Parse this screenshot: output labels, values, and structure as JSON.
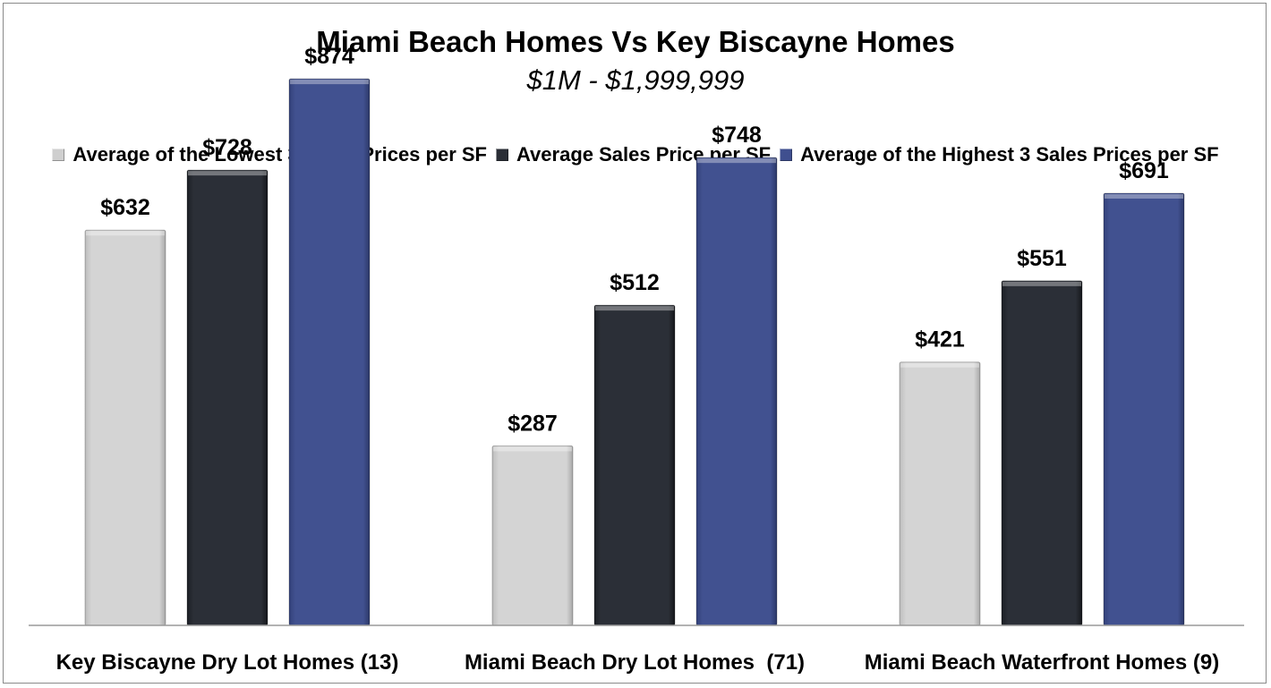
{
  "chart_data": {
    "type": "bar",
    "title": "Miami Beach Homes Vs Key Biscayne Homes",
    "subtitle": "$1M - $1,999,999",
    "categories": [
      "Key Biscayne Dry Lot Homes (13)",
      "Miami Beach Dry Lot Homes  (71)",
      "Miami Beach Waterfront Homes (9)"
    ],
    "series": [
      {
        "name": "Average of the Lowest 3 Sales Prices per SF",
        "values": [
          632,
          287,
          421
        ],
        "labels": [
          "$632",
          "$287",
          "$421"
        ],
        "color": "#cfcfcf"
      },
      {
        "name": "Average Sales Price per SF",
        "values": [
          728,
          512,
          551
        ],
        "labels": [
          "$728",
          "$512",
          "$551"
        ],
        "color": "#2a2e36"
      },
      {
        "name": "Average of the Highest 3 Sales Prices per SF",
        "values": [
          874,
          748,
          691
        ],
        "labels": [
          "$874",
          "$748",
          "$691"
        ],
        "color": "#3f4f8f"
      }
    ],
    "ylim": [
      0,
      1000
    ],
    "grid": false,
    "legend_position": "top"
  }
}
